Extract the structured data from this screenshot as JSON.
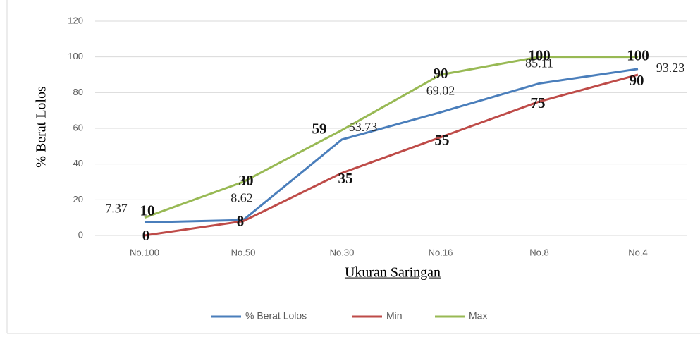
{
  "chart_data": {
    "type": "line",
    "categories": [
      "No.100",
      "No.50",
      "No.30",
      "No.16",
      "No.8",
      "No.4"
    ],
    "series": [
      {
        "name": "% Berat Lolos",
        "color": "#4a7ebb",
        "values": [
          7.37,
          8.62,
          53.73,
          69.02,
          85.11,
          93.23
        ]
      },
      {
        "name": "Min",
        "color": "#be4b48",
        "values": [
          0,
          8,
          35,
          55,
          75,
          90
        ]
      },
      {
        "name": "Max",
        "color": "#98b954",
        "values": [
          10,
          30,
          59,
          90,
          100,
          100
        ]
      }
    ],
    "xlabel": "Ukuran Saringan",
    "ylabel": "% Berat Lolos",
    "ylim": [
      0,
      120
    ],
    "yticks": [
      0,
      20,
      40,
      60,
      80,
      100,
      120
    ],
    "grid": true,
    "legend": "bottom"
  }
}
